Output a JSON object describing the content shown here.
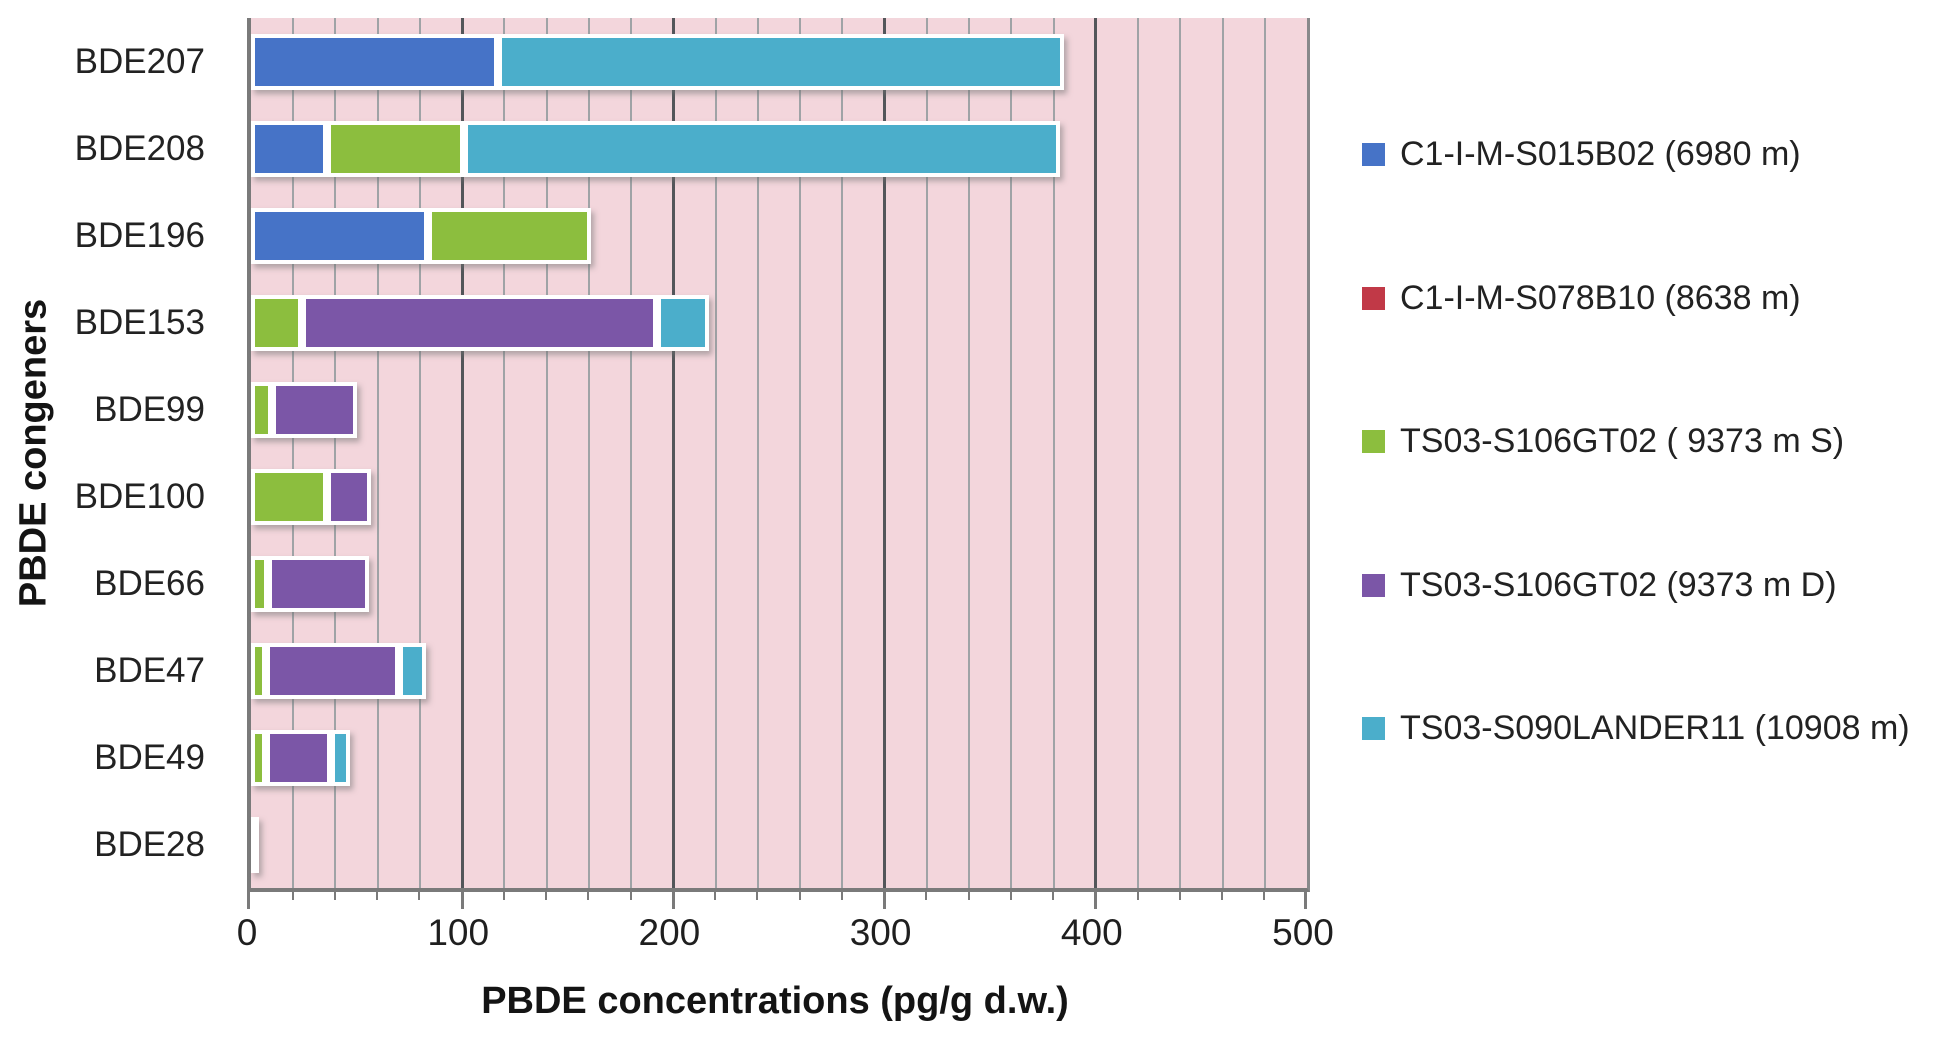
{
  "chart_data": {
    "type": "bar",
    "orientation": "horizontal",
    "stacked": true,
    "title": "",
    "xlabel": "PBDE concentrations (pg/g d.w.)",
    "ylabel": "PBDE congeners",
    "xlim": [
      0,
      500
    ],
    "x_ticks": [
      "0",
      "100",
      "200",
      "300",
      "400",
      "500"
    ],
    "minor_grid_step": 20,
    "major_grid_step": 100,
    "grid": true,
    "legend_position": "right",
    "plot_bg_color": "#F3D6DC",
    "categories": [
      "BDE207",
      "BDE208",
      "BDE196",
      "BDE153",
      "BDE99",
      "BDE100",
      "BDE66",
      "BDE47",
      "BDE49",
      "BDE28"
    ],
    "series": [
      {
        "name": "C1-I-M-S015B02 (6980 m)",
        "color": "#4673C7",
        "values": [
          117,
          36,
          84,
          0,
          0,
          0,
          0,
          0,
          0,
          0
        ]
      },
      {
        "name": "C1-I-M-S078B10 (8638 m)",
        "color": "#C13947",
        "values": [
          0,
          0,
          0,
          0,
          0,
          0,
          0,
          0,
          0,
          0
        ]
      },
      {
        "name": "TS03-S106GT02 ( 9373 m S)",
        "color": "#8CBE3E",
        "values": [
          0,
          65,
          77,
          24,
          10,
          36,
          8,
          7,
          7,
          1
        ]
      },
      {
        "name": "TS03-S106GT02 (9373 m D)",
        "color": "#7B56A7",
        "values": [
          0,
          0,
          0,
          168,
          40,
          21,
          48,
          63,
          31,
          0
        ]
      },
      {
        "name": "TS03-S090LANDER11 (10908 m)",
        "color": "#4BAECB",
        "values": [
          268,
          282,
          0,
          25,
          0,
          0,
          0,
          13,
          9,
          0
        ]
      }
    ]
  }
}
